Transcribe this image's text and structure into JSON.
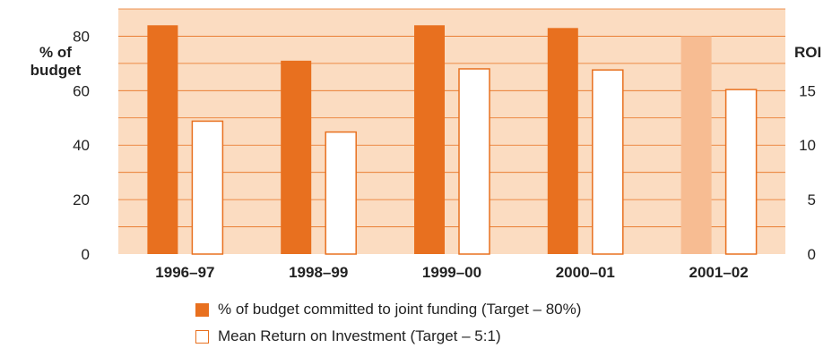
{
  "chart_data": {
    "type": "bar",
    "categories": [
      "1996–97",
      "1998–99",
      "1999–00",
      "2000–01",
      "2001–02"
    ],
    "series": [
      {
        "name": "% of budget committed to joint funding (Target – 80%)",
        "axis": "left",
        "values": [
          84,
          71,
          84,
          83,
          80
        ],
        "highlight": [
          false,
          false,
          false,
          false,
          true
        ]
      },
      {
        "name": "Mean Return on Investment (Target – 5:1)",
        "axis": "right",
        "values": [
          12.2,
          11.2,
          17,
          16.9,
          15.1
        ]
      }
    ],
    "ylabel_left": "% of budget",
    "ylabel_right": "ROI",
    "ylim_left": [
      0,
      90
    ],
    "yticks_left": [
      0,
      20,
      40,
      60,
      80
    ],
    "ylim_right": [
      0,
      22.5
    ],
    "yticks_right": [
      0,
      5,
      10,
      15
    ],
    "grid": true,
    "legend_position": "bottom",
    "colors": {
      "background": "#fbdcc1",
      "primary_bar": "#e8701f",
      "primary_bar_light": "#f7bc92",
      "secondary_fill": "#ffffff",
      "secondary_stroke": "#e8701f",
      "grid": "#e8701f"
    }
  }
}
